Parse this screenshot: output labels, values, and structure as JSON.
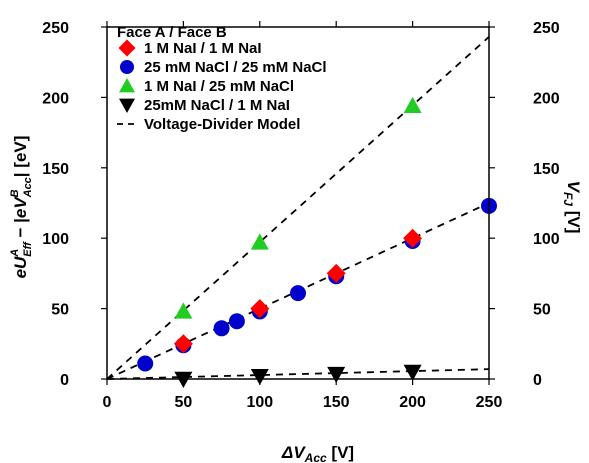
{
  "chart_data": {
    "type": "scatter",
    "xlabel": {
      "prefix": "ΔV",
      "sub": "Acc",
      "unit": " [V]"
    },
    "ylabel_left": "eU^A_Eff − |eV^B_Acc| [eV]",
    "ylabel_right": {
      "prefix": "V",
      "sub": "FJ",
      "unit": " [V]"
    },
    "xlim": [
      0,
      250
    ],
    "ylim": [
      0,
      250
    ],
    "x_ticks": [
      0,
      50,
      100,
      150,
      200,
      250
    ],
    "y_ticks": [
      0,
      50,
      100,
      150,
      200,
      250
    ],
    "legend": {
      "title": "Face A / Face B",
      "position": "top-left"
    },
    "series": [
      {
        "name": "1 M NaI / 1 M NaI",
        "marker": "diamond",
        "color": "#ff0000",
        "x": [
          50,
          100,
          150,
          200
        ],
        "y": [
          25,
          50,
          75,
          100
        ]
      },
      {
        "name": "25 mM NaCl / 25 mM NaCl",
        "marker": "circle",
        "color": "#0000cc",
        "x": [
          25,
          50,
          75,
          85,
          100,
          125,
          150,
          200,
          250
        ],
        "y": [
          11,
          24,
          36,
          41,
          48,
          61,
          73,
          98,
          123
        ]
      },
      {
        "name": "1 M NaI / 25 mM NaCl",
        "marker": "triangle-up",
        "color": "#22cc22",
        "x": [
          50,
          100,
          200
        ],
        "y": [
          48,
          97,
          194
        ]
      },
      {
        "name": "25mM NaCl / 1 M NaI",
        "marker": "triangle-down",
        "color": "#000000",
        "x": [
          50,
          100,
          150,
          200
        ],
        "y": [
          0,
          2,
          3.5,
          5
        ]
      }
    ],
    "lines": [
      {
        "name": "Voltage-Divider Model",
        "style": "dashed",
        "color": "#000000",
        "legend": true,
        "x": [
          0,
          250
        ],
        "y": [
          0,
          243
        ]
      },
      {
        "name": "",
        "style": "dashed",
        "color": "#000000",
        "legend": false,
        "x": [
          0,
          250
        ],
        "y": [
          0,
          125
        ]
      },
      {
        "name": "",
        "style": "dashed",
        "color": "#000000",
        "legend": false,
        "x": [
          0,
          250
        ],
        "y": [
          0,
          7
        ]
      }
    ]
  }
}
